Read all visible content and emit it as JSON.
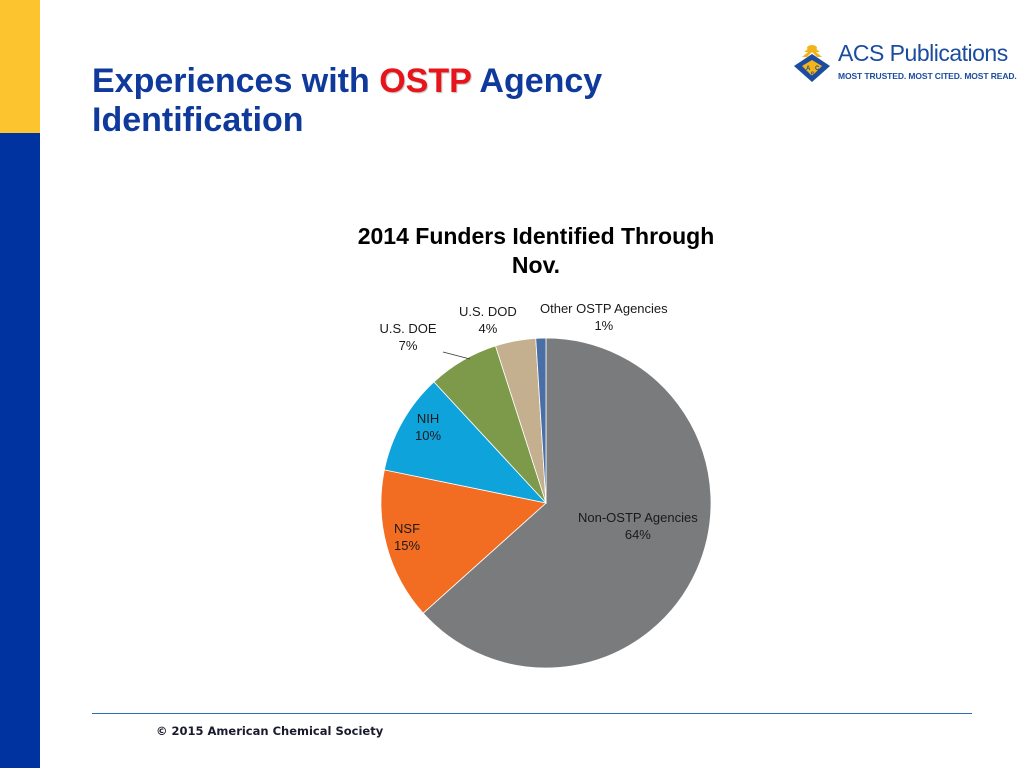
{
  "slide": {
    "title_part1": "Experiences with ",
    "title_highlight": "OSTP",
    "title_part2": " Agency Identification"
  },
  "logo": {
    "name": "ACS Publications",
    "tagline": "MOST TRUSTED. MOST CITED. MOST READ.",
    "icon": "acs-emblem-icon"
  },
  "footer": {
    "copyright": "© 2015 American Chemical Society"
  },
  "colors": {
    "accent_blue": "#0033A0",
    "accent_gold": "#FCC52F",
    "highlight_red": "#E8141B"
  },
  "chart_data": {
    "type": "pie",
    "title": "2014 Funders Identified Through  Nov.",
    "slices": [
      {
        "name": "Non-OSTP Agencies",
        "value": 64,
        "label": "64%",
        "color": "#7A7B7D"
      },
      {
        "name": "NSF",
        "value": 15,
        "label": "15%",
        "color": "#F26C21"
      },
      {
        "name": "NIH",
        "value": 10,
        "label": "10%",
        "color": "#0FA3DB"
      },
      {
        "name": "U.S. DOE",
        "value": 7,
        "label": "7%",
        "color": "#7C9A4A"
      },
      {
        "name": "U.S. DOD",
        "value": 4,
        "label": "4%",
        "color": "#C4B08F"
      },
      {
        "name": "Other OSTP Agencies",
        "value": 1,
        "label": "1%",
        "color": "#4A6FA5"
      }
    ],
    "legend": "none"
  }
}
